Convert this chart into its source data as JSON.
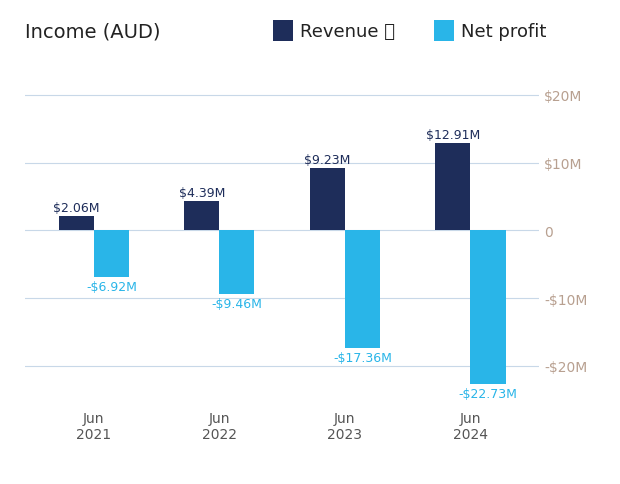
{
  "title": "Income (AUD)",
  "legend_revenue": "Revenue ⓘ",
  "legend_profit": "Net profit",
  "categories": [
    "Jun\n2021",
    "Jun\n2022",
    "Jun\n2023",
    "Jun\n2024"
  ],
  "revenue": [
    2.06,
    4.39,
    9.23,
    12.91
  ],
  "net_profit": [
    -6.92,
    -9.46,
    -17.36,
    -22.73
  ],
  "revenue_labels": [
    "$2.06M",
    "$4.39M",
    "$9.23M",
    "$12.91M"
  ],
  "profit_labels": [
    "-$6.92M",
    "-$9.46M",
    "-$17.36M",
    "-$22.73M"
  ],
  "revenue_color": "#1e2d5a",
  "net_profit_color": "#29b5e8",
  "background_color": "#ffffff",
  "grid_color": "#c8d8e8",
  "right_axis_color": "#b8a090",
  "label_color_revenue": "#1e2d5a",
  "label_color_profit": "#29b5e8",
  "yticks": [
    -20,
    -10,
    0,
    10,
    20
  ],
  "ytick_labels_right": [
    "-$20M",
    "-$10M",
    "0",
    "$10M",
    "$20M"
  ],
  "ylim": [
    -26,
    22
  ],
  "bar_width": 0.28,
  "title_fontsize": 14,
  "label_fontsize": 9,
  "tick_fontsize": 10,
  "legend_fontsize": 13,
  "header_text_color": "#222222"
}
